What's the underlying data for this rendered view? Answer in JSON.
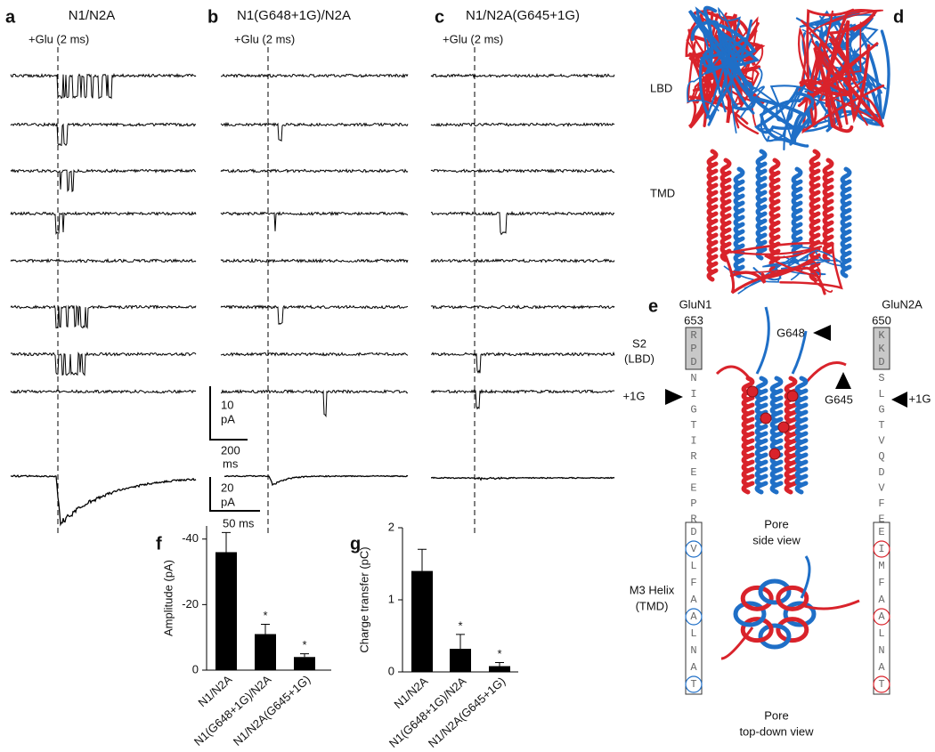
{
  "panel_labels": [
    "a",
    "b",
    "c",
    "d",
    "e",
    "f",
    "g"
  ],
  "traces": {
    "titles": [
      "N1/N2A",
      "N1(G648+1G)/N2A",
      "N1/N2A(G645+1G)"
    ],
    "stimulus": [
      "+Glu (2 ms)",
      "+Glu (2 ms)",
      "+Glu (2 ms)"
    ],
    "scale_bar_single": {
      "current": 10,
      "current_unit": "pA",
      "time": 200,
      "time_unit": "ms"
    },
    "scale_bar_average": {
      "current": 20,
      "current_unit": "pA",
      "time": "50 ms"
    }
  },
  "structure": {
    "lbd": "LBD",
    "tmd": "TMD"
  },
  "pore": {
    "glun1": {
      "name": "GluN1",
      "start": 653,
      "s2": [
        "R",
        "P",
        "D"
      ],
      "linker": [
        "N",
        "I",
        "G",
        "T",
        "I",
        "R",
        "E",
        "E",
        "P",
        "R"
      ],
      "m3": [
        "D",
        "V",
        "L",
        "F",
        "A",
        "A",
        "L",
        "N",
        "A",
        "T"
      ]
    },
    "glun2a": {
      "name": "GluN2A",
      "start": 650,
      "s2": [
        "K",
        "K",
        "D"
      ],
      "linker": [
        "S",
        "L",
        "G",
        "T",
        "V",
        "Q",
        "D",
        "V",
        "F",
        "E"
      ],
      "m3": [
        "E",
        "I",
        "M",
        "F",
        "A",
        "A",
        "L",
        "N",
        "A",
        "T"
      ]
    },
    "s2_label": [
      "S2",
      "(LBD)"
    ],
    "m3_label": [
      "M3 Helix",
      "(TMD)"
    ],
    "insert_left": "+1G",
    "insert_right": "+1G",
    "g648": "G648",
    "g645": "G645",
    "side_view": [
      "Pore",
      "side view"
    ],
    "top_view": [
      "Pore",
      "top-down view"
    ]
  },
  "chart_data": [
    {
      "type": "bar",
      "ylabel": "Amplitude (pA)",
      "categories": [
        "N1/N2A",
        "N1(G648+1G)/N2A",
        "N1/N2A(G645+1G)"
      ],
      "values": [
        -36,
        -11,
        -4
      ],
      "errors": [
        6,
        3,
        1
      ],
      "significance": [
        null,
        "*",
        "*"
      ],
      "color": "#000000",
      "ylim": [
        0,
        -44
      ],
      "yticks": [
        0,
        -20,
        -40
      ]
    },
    {
      "type": "bar",
      "ylabel": "Charge transfer (pC)",
      "categories": [
        "N1/N2A",
        "N1(G648+1G)/N2A",
        "N1/N2A(G645+1G)"
      ],
      "values": [
        1.4,
        0.32,
        0.08
      ],
      "errors": [
        0.3,
        0.2,
        0.05
      ],
      "significance": [
        null,
        "*",
        "*"
      ],
      "color": "#000000",
      "ylim": [
        0,
        2
      ],
      "yticks": [
        0,
        1,
        2
      ]
    }
  ]
}
